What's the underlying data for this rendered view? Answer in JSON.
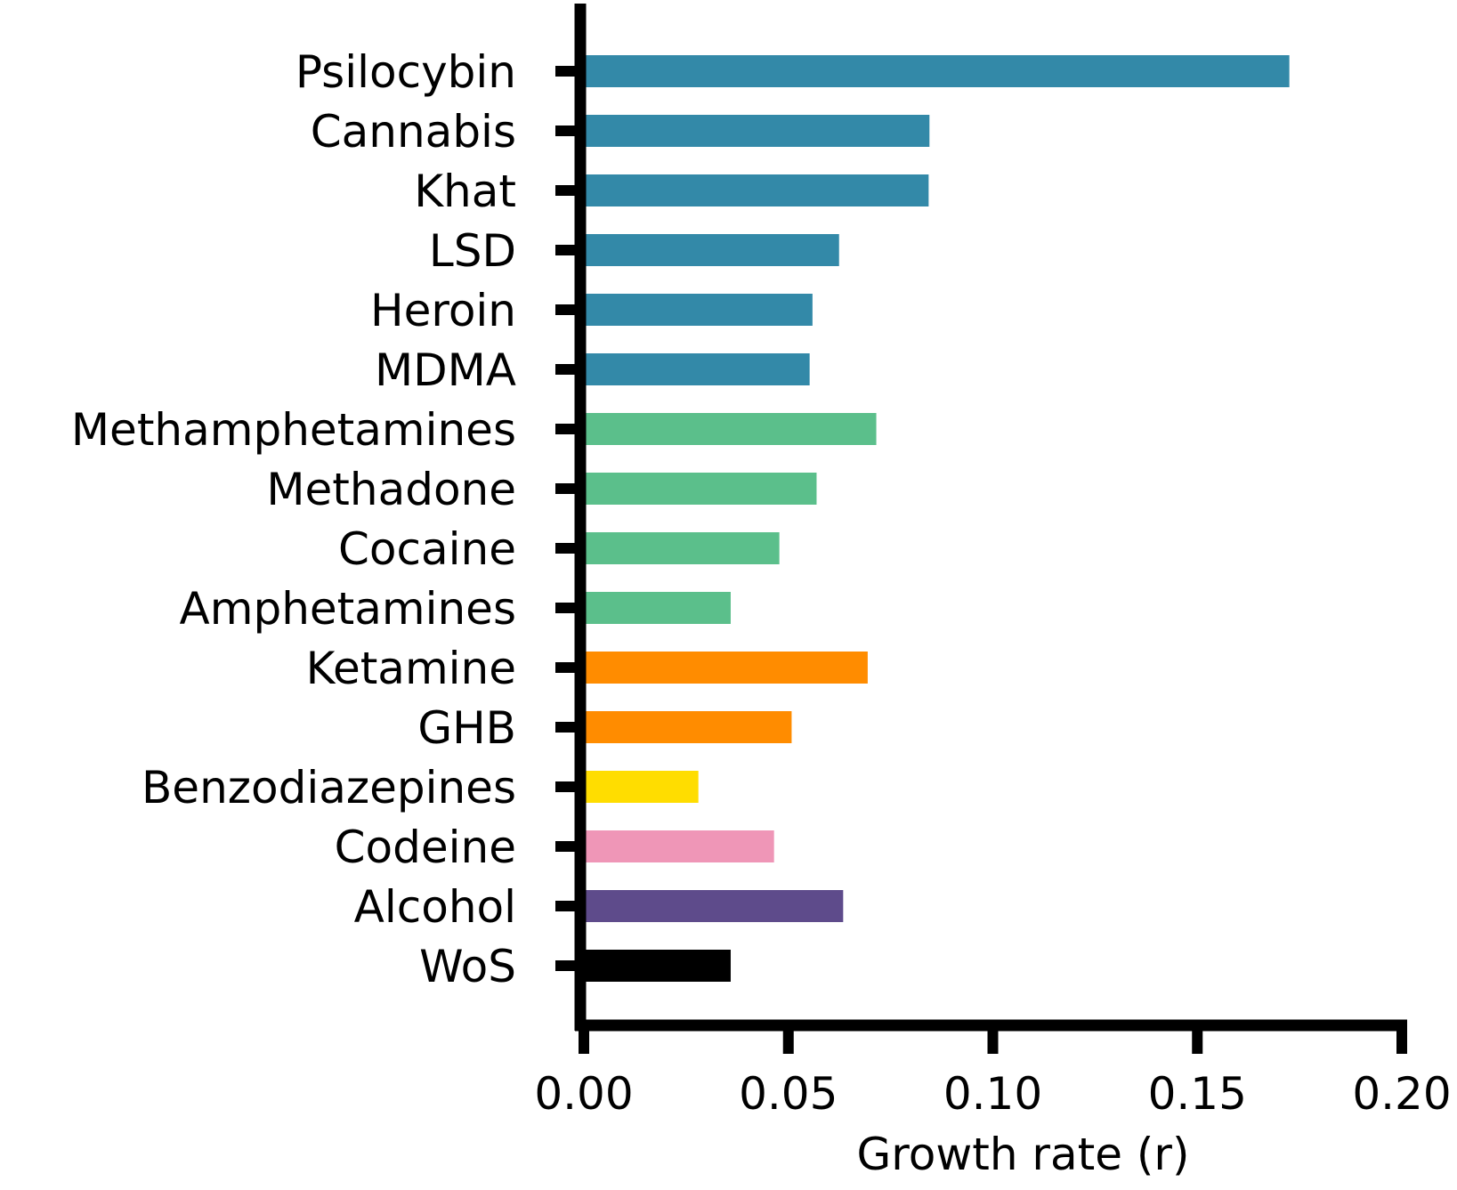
{
  "chart_data": {
    "type": "bar",
    "orientation": "horizontal",
    "categories": [
      "Psilocybin",
      "Cannabis",
      "Khat",
      "LSD",
      "Heroin",
      "MDMA",
      "Methamphetamines",
      "Methadone",
      "Cocaine",
      "Amphetamines",
      "Ketamine",
      "GHB",
      "Benzodiazepines",
      "Codeine",
      "Alcohol",
      "WoS"
    ],
    "values": [
      0.1725,
      0.0845,
      0.0843,
      0.0624,
      0.0559,
      0.0552,
      0.0715,
      0.0569,
      0.0478,
      0.0359,
      0.0694,
      0.0508,
      0.028,
      0.0465,
      0.0634,
      0.0359
    ],
    "colors": [
      "#3389a8",
      "#3389a8",
      "#3389a8",
      "#3389a8",
      "#3389a8",
      "#3389a8",
      "#5bbf8b",
      "#5bbf8b",
      "#5bbf8b",
      "#5bbf8b",
      "#ff8c00",
      "#ff8c00",
      "#ffdd00",
      "#ef96b7",
      "#5e4b8b",
      "#000000"
    ],
    "xlabel": "Growth rate (r)",
    "ylabel": "",
    "title": "",
    "xlim": [
      0.0,
      0.2
    ],
    "xticks": [
      "0.00",
      "0.05",
      "0.10",
      "0.15",
      "0.20"
    ],
    "xtick_values": [
      0.0,
      0.05,
      0.1,
      0.15,
      0.2
    ],
    "grid": false,
    "legend": "none"
  }
}
